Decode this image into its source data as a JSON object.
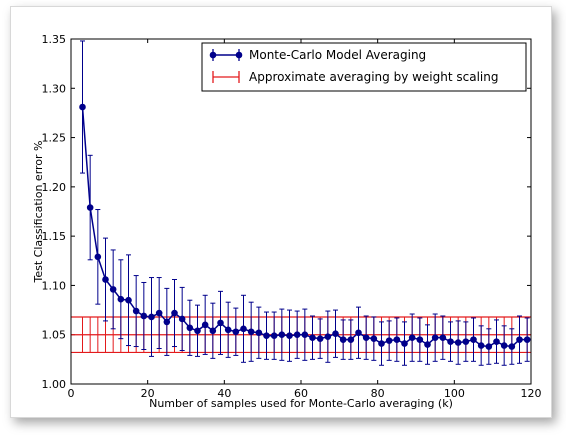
{
  "chart_data": {
    "type": "line",
    "title": "",
    "xlabel": "Number of samples used for Monte-Carlo averaging (k)",
    "ylabel": "Test Classification error %",
    "xlim": [
      0,
      120
    ],
    "ylim": [
      1.0,
      1.35
    ],
    "xticks": [
      0,
      20,
      40,
      60,
      80,
      100,
      120
    ],
    "xtick_labels": [
      "0",
      "20",
      "40",
      "60",
      "80",
      "100",
      "120"
    ],
    "yticks": [
      1.0,
      1.05,
      1.1,
      1.15,
      1.2,
      1.25,
      1.3,
      1.35
    ],
    "ytick_labels": [
      "1.00",
      "1.05",
      "1.10",
      "1.15",
      "1.20",
      "1.25",
      "1.30",
      "1.35"
    ],
    "legend_position": "top-right",
    "series": [
      {
        "name": "Monte-Carlo Model Averaging",
        "color": "#00008b",
        "x": [
          3,
          5,
          7,
          9,
          11,
          13,
          15,
          17,
          19,
          21,
          23,
          25,
          27,
          29,
          31,
          33,
          35,
          37,
          39,
          41,
          43,
          45,
          47,
          49,
          51,
          53,
          55,
          57,
          59,
          61,
          63,
          65,
          67,
          69,
          71,
          73,
          75,
          77,
          79,
          81,
          83,
          85,
          87,
          89,
          91,
          93,
          95,
          97,
          99,
          101,
          103,
          105,
          107,
          109,
          111,
          113,
          115,
          117,
          119
        ],
        "y": [
          1.281,
          1.179,
          1.129,
          1.106,
          1.096,
          1.086,
          1.085,
          1.074,
          1.069,
          1.068,
          1.072,
          1.063,
          1.072,
          1.066,
          1.057,
          1.054,
          1.06,
          1.054,
          1.062,
          1.055,
          1.053,
          1.056,
          1.053,
          1.052,
          1.049,
          1.049,
          1.05,
          1.049,
          1.05,
          1.05,
          1.047,
          1.046,
          1.048,
          1.051,
          1.045,
          1.045,
          1.052,
          1.047,
          1.046,
          1.041,
          1.044,
          1.045,
          1.041,
          1.047,
          1.045,
          1.04,
          1.047,
          1.047,
          1.043,
          1.042,
          1.043,
          1.045,
          1.039,
          1.038,
          1.043,
          1.039,
          1.038,
          1.045,
          1.045
        ],
        "err": [
          0.067,
          0.053,
          0.048,
          0.042,
          0.04,
          0.04,
          0.046,
          0.036,
          0.034,
          0.04,
          0.036,
          0.034,
          0.034,
          0.032,
          0.028,
          0.026,
          0.03,
          0.028,
          0.032,
          0.028,
          0.024,
          0.034,
          0.03,
          0.026,
          0.024,
          0.024,
          0.026,
          0.026,
          0.024,
          0.026,
          0.022,
          0.02,
          0.026,
          0.024,
          0.02,
          0.02,
          0.026,
          0.022,
          0.022,
          0.022,
          0.02,
          0.022,
          0.022,
          0.024,
          0.022,
          0.02,
          0.024,
          0.022,
          0.02,
          0.022,
          0.02,
          0.022,
          0.02,
          0.018,
          0.022,
          0.02,
          0.018,
          0.024,
          0.022
        ]
      },
      {
        "name": "Approximate averaging by weight scaling",
        "color": "#e31a1c",
        "y": 1.05,
        "err": 0.018,
        "x": [
          3,
          5,
          7,
          9,
          11,
          13,
          15,
          17,
          19,
          21,
          23,
          25,
          27,
          29,
          31,
          33,
          35,
          37,
          39,
          41,
          43,
          45,
          47,
          49,
          51,
          53,
          55,
          57,
          59,
          61,
          63,
          65,
          67,
          69,
          71,
          73,
          75,
          77,
          79,
          81,
          83,
          85,
          87,
          89,
          91,
          93,
          95,
          97,
          99,
          101,
          103,
          105,
          107,
          109,
          111,
          113,
          115,
          117,
          119
        ]
      }
    ]
  }
}
